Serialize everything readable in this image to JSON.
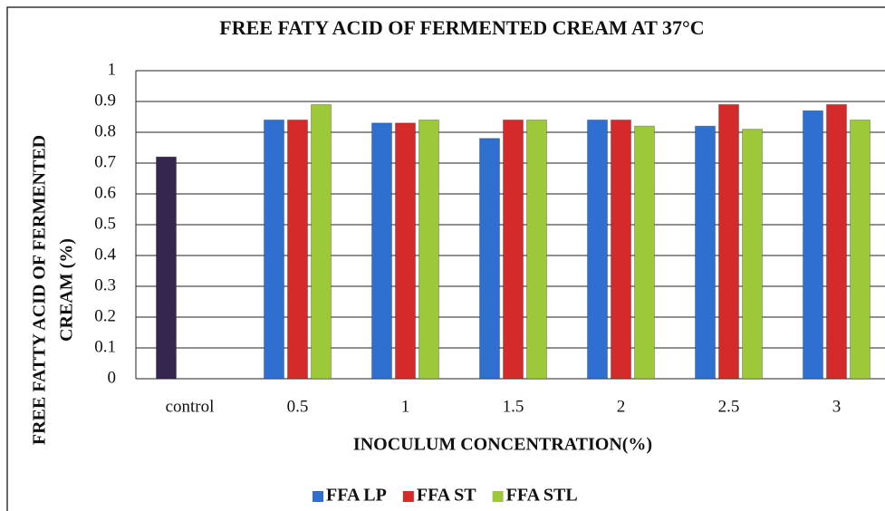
{
  "chart_data": {
    "type": "bar",
    "title": "FREE FATY ACID OF FERMENTED CREAM AT 37°C",
    "xlabel": "INOCULUM  CONCENTRATION(%)",
    "ylabel": [
      "FREE  FATTY  ACID  OF  FERMENTED",
      "CREAM (%)"
    ],
    "categories": [
      "control",
      "0.5",
      "1",
      "1.5",
      "2",
      "2.5",
      "3"
    ],
    "series": [
      {
        "name": "FFA LP",
        "color": "#2f6fd0",
        "point_colors": {
          "0": "#35264f"
        },
        "values": [
          0.72,
          0.84,
          0.83,
          0.78,
          0.84,
          0.82,
          0.87
        ]
      },
      {
        "name": "FFA ST",
        "color": "#d42a2a",
        "values": [
          null,
          0.84,
          0.83,
          0.84,
          0.84,
          0.89,
          0.89
        ]
      },
      {
        "name": "FFA STL",
        "color": "#9cc83a",
        "values": [
          null,
          0.89,
          0.84,
          0.84,
          0.82,
          0.81,
          0.84
        ]
      }
    ],
    "ylim": [
      0,
      1
    ],
    "yticks": [
      0,
      0.1,
      0.2,
      0.3,
      0.4,
      0.5,
      0.6,
      0.7,
      0.8,
      0.9,
      1
    ],
    "grid": true,
    "legend": "bottom"
  }
}
